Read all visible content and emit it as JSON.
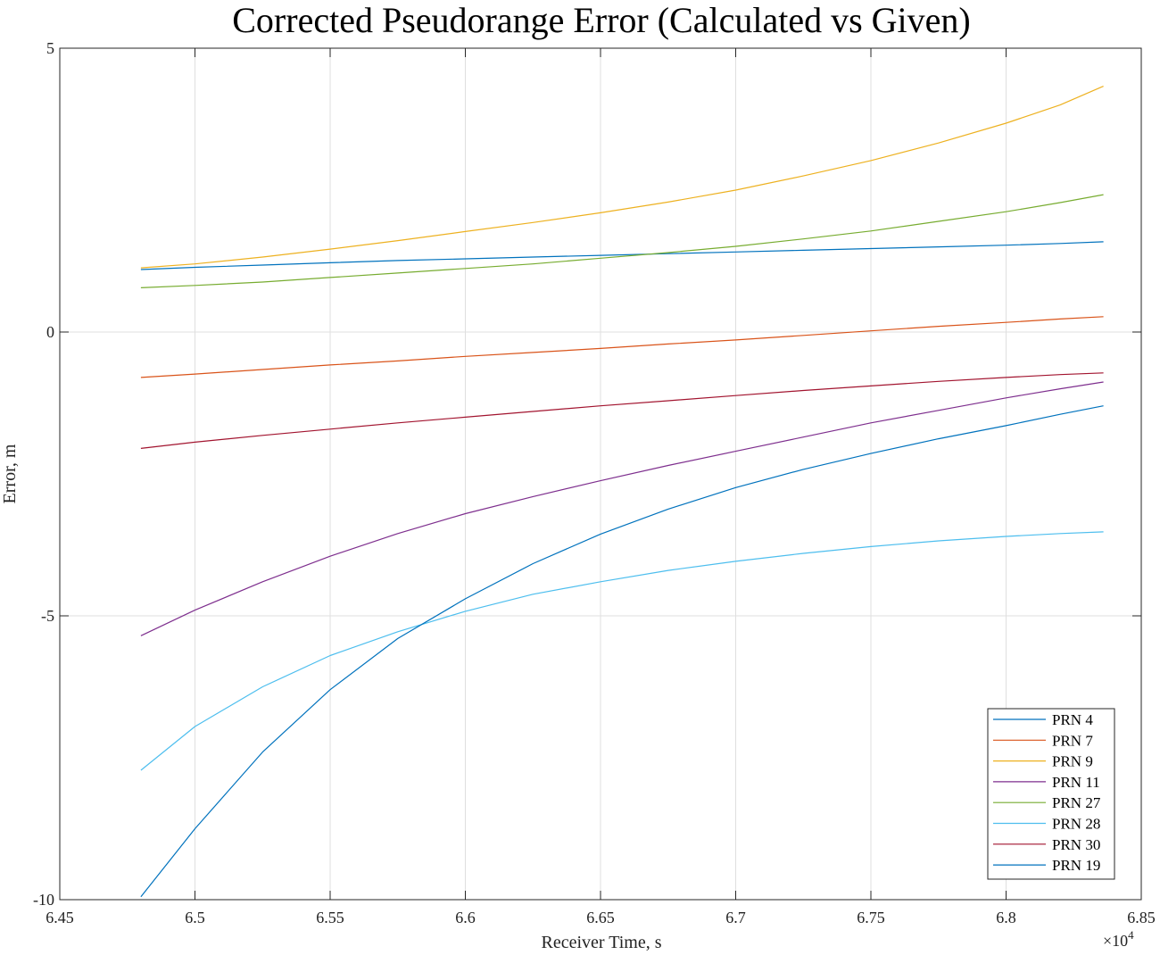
{
  "chart_data": {
    "type": "line",
    "title": "Corrected Pseudorange Error (Calculated vs Given)",
    "xlabel": "Receiver Time, s",
    "ylabel": "Error, m",
    "x_multiplier_label": "×10",
    "x_multiplier_exponent": "4",
    "xlim": [
      64500,
      68500
    ],
    "ylim": [
      -10,
      5
    ],
    "x_ticks": [
      64500,
      65000,
      65500,
      66000,
      66500,
      67000,
      67500,
      68000,
      68500
    ],
    "x_tick_labels": [
      "6.45",
      "6.5",
      "6.55",
      "6.6",
      "6.65",
      "6.7",
      "6.75",
      "6.8",
      "6.85"
    ],
    "y_ticks": [
      5,
      0,
      -5,
      -10
    ],
    "y_tick_labels": [
      "5",
      "0",
      "-5",
      "-10"
    ],
    "grid": true,
    "legend_position": "bottom-right",
    "x": [
      64800,
      65000,
      65250,
      65500,
      65750,
      66000,
      66250,
      66500,
      66750,
      67000,
      67250,
      67500,
      67750,
      68000,
      68200,
      68360
    ],
    "series": [
      {
        "name": "PRN 4",
        "color": "#0072BD",
        "values": [
          1.1,
          1.14,
          1.18,
          1.22,
          1.26,
          1.29,
          1.32,
          1.35,
          1.38,
          1.41,
          1.44,
          1.47,
          1.5,
          1.53,
          1.56,
          1.59
        ]
      },
      {
        "name": "PRN 7",
        "color": "#D95319",
        "values": [
          -0.8,
          -0.74,
          -0.66,
          -0.58,
          -0.51,
          -0.43,
          -0.36,
          -0.29,
          -0.21,
          -0.14,
          -0.06,
          0.02,
          0.1,
          0.17,
          0.23,
          0.27
        ]
      },
      {
        "name": "PRN 9",
        "color": "#EDB120",
        "values": [
          1.13,
          1.2,
          1.32,
          1.46,
          1.61,
          1.77,
          1.93,
          2.1,
          2.29,
          2.5,
          2.75,
          3.02,
          3.33,
          3.68,
          4.0,
          4.33
        ]
      },
      {
        "name": "PRN 11",
        "color": "#7E2F8E",
        "values": [
          -5.35,
          -4.9,
          -4.4,
          -3.95,
          -3.55,
          -3.2,
          -2.9,
          -2.62,
          -2.35,
          -2.1,
          -1.85,
          -1.6,
          -1.38,
          -1.16,
          -1.0,
          -0.88
        ]
      },
      {
        "name": "PRN 27",
        "color": "#77AC30",
        "values": [
          0.78,
          0.82,
          0.88,
          0.96,
          1.04,
          1.12,
          1.2,
          1.3,
          1.4,
          1.51,
          1.64,
          1.78,
          1.95,
          2.12,
          2.28,
          2.42
        ]
      },
      {
        "name": "PRN 28",
        "color": "#4DBEEE",
        "values": [
          -7.72,
          -6.95,
          -6.25,
          -5.7,
          -5.28,
          -4.92,
          -4.62,
          -4.4,
          -4.2,
          -4.04,
          -3.9,
          -3.78,
          -3.68,
          -3.6,
          -3.55,
          -3.52
        ]
      },
      {
        "name": "PRN 30",
        "color": "#A2142F",
        "values": [
          -2.05,
          -1.94,
          -1.82,
          -1.71,
          -1.6,
          -1.5,
          -1.4,
          -1.3,
          -1.21,
          -1.12,
          -1.03,
          -0.95,
          -0.87,
          -0.8,
          -0.75,
          -0.72
        ]
      },
      {
        "name": "PRN 19",
        "color": "#0072BD",
        "values": [
          -9.95,
          -8.75,
          -7.4,
          -6.3,
          -5.4,
          -4.7,
          -4.08,
          -3.56,
          -3.12,
          -2.74,
          -2.42,
          -2.14,
          -1.88,
          -1.65,
          -1.45,
          -1.3
        ]
      }
    ]
  }
}
